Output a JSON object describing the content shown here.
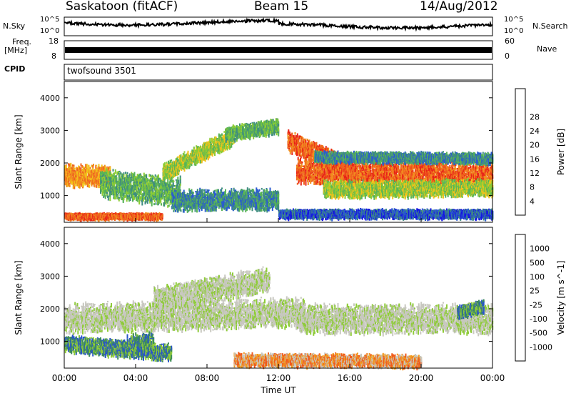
{
  "header": {
    "station": "Saskatoon (fitACF)",
    "beam": "Beam 15",
    "date": "14/Aug/2012"
  },
  "panels": {
    "nsky": {
      "label": "N.Sky",
      "tick_top": "10^5",
      "tick_bottom": "10^0"
    },
    "nsearch": {
      "label": "N.Search",
      "tick_top": "10^5",
      "tick_bottom": "10^0"
    },
    "freq": {
      "label_line1": "Freq.",
      "label_line2": "[MHz]",
      "tick_top": "18",
      "tick_bottom": "8"
    },
    "nave": {
      "label": "Nave",
      "tick_top": "60",
      "tick_bottom": "0"
    },
    "cpid": {
      "label": "CPID",
      "value": "twofsound 3501"
    }
  },
  "chart_data": [
    {
      "type": "heatmap",
      "panel": "power",
      "ylabel": "Slant Range [km]",
      "yticks": [
        "1000",
        "2000",
        "3000",
        "4000"
      ],
      "ylim": [
        180,
        4500
      ],
      "xlim": [
        0,
        24
      ],
      "colorbar": {
        "label": "Power [dB]",
        "ticks": [
          "4",
          "8",
          "12",
          "16",
          "20",
          "24",
          "28"
        ],
        "colors": [
          "#1515e0",
          "#2a5bd0",
          "#3f8d7f",
          "#58b457",
          "#8dcc34",
          "#f2c21b",
          "#f29020",
          "#ef6420",
          "#e82418"
        ]
      },
      "bands": [
        {
          "t": [
            0.0,
            2.6
          ],
          "center": [
            1650,
            1580
          ],
          "width": 520,
          "level": 6
        },
        {
          "t": [
            0.0,
            5.5
          ],
          "center": [
            380,
            380
          ],
          "width": 120,
          "level": 7
        },
        {
          "t": [
            2.0,
            6.5
          ],
          "center": [
            1400,
            1100
          ],
          "width": 700,
          "level": 3
        },
        {
          "t": [
            5.5,
            9.5
          ],
          "center": [
            1700,
            2850
          ],
          "width": 420,
          "level": 4
        },
        {
          "t": [
            9.0,
            12.0
          ],
          "center": [
            2900,
            3150
          ],
          "width": 350,
          "level": 3
        },
        {
          "t": [
            6.0,
            12.0
          ],
          "center": [
            850,
            900
          ],
          "width": 500,
          "level": 2
        },
        {
          "t": [
            12.5,
            16.0
          ],
          "center": [
            2700,
            1850
          ],
          "width": 500,
          "level": 7
        },
        {
          "t": [
            13.0,
            24.0
          ],
          "center": [
            1750,
            1650
          ],
          "width": 600,
          "level": 7
        },
        {
          "t": [
            14.5,
            24.0
          ],
          "center": [
            1200,
            1250
          ],
          "width": 400,
          "level": 4
        },
        {
          "t": [
            14.0,
            24.0
          ],
          "center": [
            2200,
            2150
          ],
          "width": 250,
          "level": 2
        },
        {
          "t": [
            12.0,
            24.0
          ],
          "center": [
            450,
            450
          ],
          "width": 200,
          "level": 1
        }
      ]
    },
    {
      "type": "heatmap",
      "panel": "velocity",
      "ylabel": "Slant Range [km]",
      "yticks": [
        "1000",
        "2000",
        "3000",
        "4000"
      ],
      "ylim": [
        180,
        4500
      ],
      "xlim": [
        0,
        24
      ],
      "xticks": [
        "00:00",
        "04:00",
        "08:00",
        "12:00",
        "16:00",
        "20:00",
        "00:00"
      ],
      "xtick_hours": [
        0,
        4,
        8,
        12,
        16,
        20,
        24
      ],
      "xlabel": "Time UT",
      "colorbar": {
        "label": "Velocity [m s^-1]",
        "ticks": [
          "-1000",
          "-500",
          "-100",
          "-25",
          "25",
          "100",
          "500",
          "1000"
        ],
        "colors": [
          "#e81818",
          "#ef5a1c",
          "#f29a1e",
          "#c8c8c0",
          "#c8c8c0",
          "#8fcb3a",
          "#3c8c5a",
          "#2a56c8",
          "#1a2aa8"
        ]
      },
      "bands": [
        {
          "t": [
            0.0,
            13.5
          ],
          "center": [
            1700,
            1900
          ],
          "width": 700,
          "level": 4
        },
        {
          "t": [
            5.0,
            11.5
          ],
          "center": [
            2300,
            2900
          ],
          "width": 600,
          "level": 4
        },
        {
          "t": [
            13.0,
            24.0
          ],
          "center": [
            1700,
            1700
          ],
          "width": 700,
          "level": 4
        },
        {
          "t": [
            0.0,
            6.0
          ],
          "center": [
            950,
            650
          ],
          "width": 400,
          "level": 6
        },
        {
          "t": [
            3.5,
            5.0
          ],
          "center": [
            900,
            950
          ],
          "width": 500,
          "level": 6
        },
        {
          "t": [
            9.5,
            20.0
          ],
          "center": [
            450,
            400
          ],
          "width": 300,
          "level": 2
        },
        {
          "t": [
            22.0,
            23.5
          ],
          "center": [
            1900,
            2100
          ],
          "width": 300,
          "level": 6
        }
      ]
    }
  ]
}
